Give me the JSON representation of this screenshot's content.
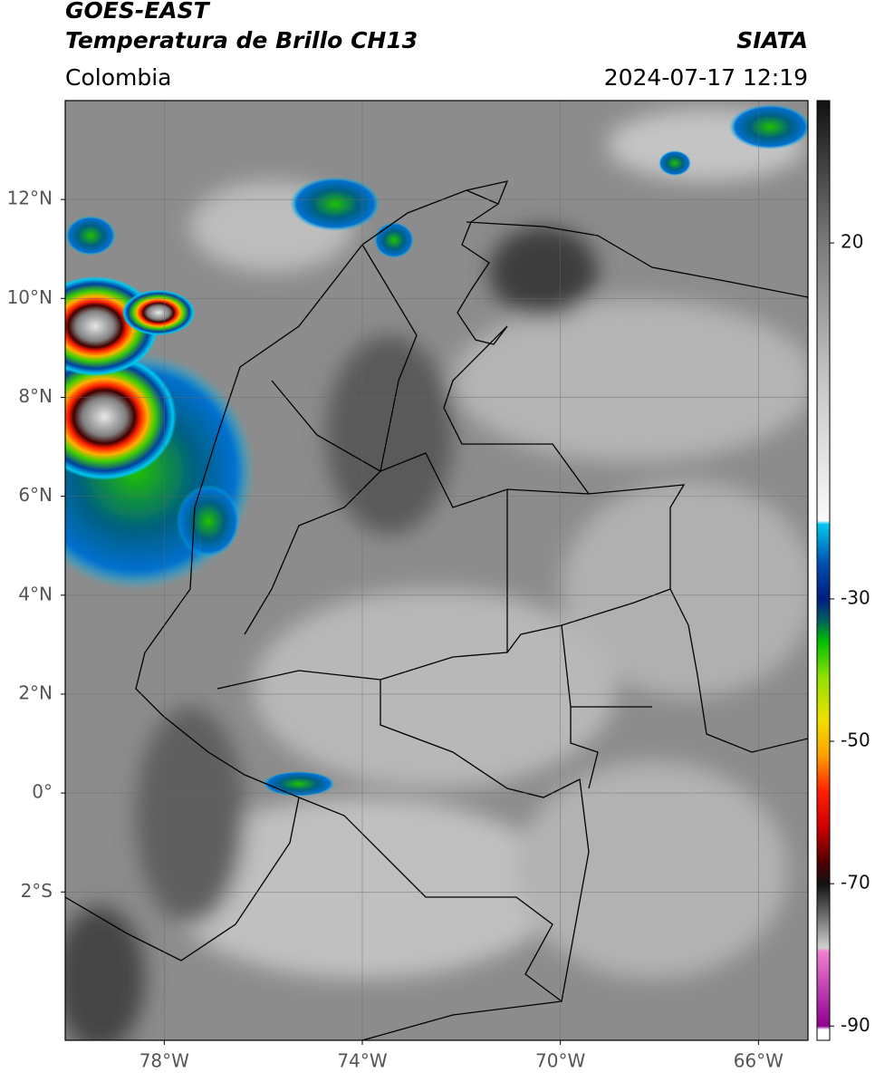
{
  "header": {
    "title": "GOES-EAST",
    "subtitle": "Temperatura de Brillo CH13",
    "source": "SIATA",
    "region": "Colombia",
    "timestamp": "2024-07-17 12:19"
  },
  "map": {
    "lonlim": [
      -80,
      -65
    ],
    "latlim": [
      -5,
      14
    ],
    "lonticks": [
      {
        "value": -78,
        "label": "78°W"
      },
      {
        "value": -74,
        "label": "74°W"
      },
      {
        "value": -70,
        "label": "70°W"
      },
      {
        "value": -66,
        "label": "66°W"
      }
    ],
    "latticks": [
      {
        "value": 12,
        "label": "12°N"
      },
      {
        "value": 10,
        "label": "10°N"
      },
      {
        "value": 8,
        "label": "8°N"
      },
      {
        "value": 6,
        "label": "6°N"
      },
      {
        "value": 4,
        "label": "4°N"
      },
      {
        "value": 2,
        "label": "2°N"
      },
      {
        "value": 0,
        "label": "0°"
      },
      {
        "value": -2,
        "label": "2°S"
      }
    ],
    "grid": true
  },
  "colorbar": {
    "lim": [
      -92,
      40
    ],
    "ticks": [
      20,
      -30,
      -50,
      -70,
      -90
    ],
    "stops": [
      {
        "value": 40,
        "color": "#111111"
      },
      {
        "value": 20,
        "color": "#7a7a7a"
      },
      {
        "value": 0,
        "color": "#c8c8c8"
      },
      {
        "value": -19,
        "color": "#fafafa"
      },
      {
        "value": -19.5,
        "color": "#00c8f0"
      },
      {
        "value": -25,
        "color": "#0050b0"
      },
      {
        "value": -30,
        "color": "#001c80"
      },
      {
        "value": -33,
        "color": "#006060"
      },
      {
        "value": -36,
        "color": "#00c000"
      },
      {
        "value": -41,
        "color": "#90e000"
      },
      {
        "value": -47,
        "color": "#f0e000"
      },
      {
        "value": -52,
        "color": "#ffa000"
      },
      {
        "value": -57,
        "color": "#ff2000"
      },
      {
        "value": -62,
        "color": "#d00000"
      },
      {
        "value": -67,
        "color": "#500000"
      },
      {
        "value": -70,
        "color": "#111111"
      },
      {
        "value": -75,
        "color": "#777777"
      },
      {
        "value": -79,
        "color": "#d0d0d0"
      },
      {
        "value": -79.5,
        "color": "#f080d0"
      },
      {
        "value": -90,
        "color": "#900090"
      },
      {
        "value": -90.5,
        "color": "#ffffff"
      },
      {
        "value": -92,
        "color": "#ffffff"
      }
    ]
  }
}
